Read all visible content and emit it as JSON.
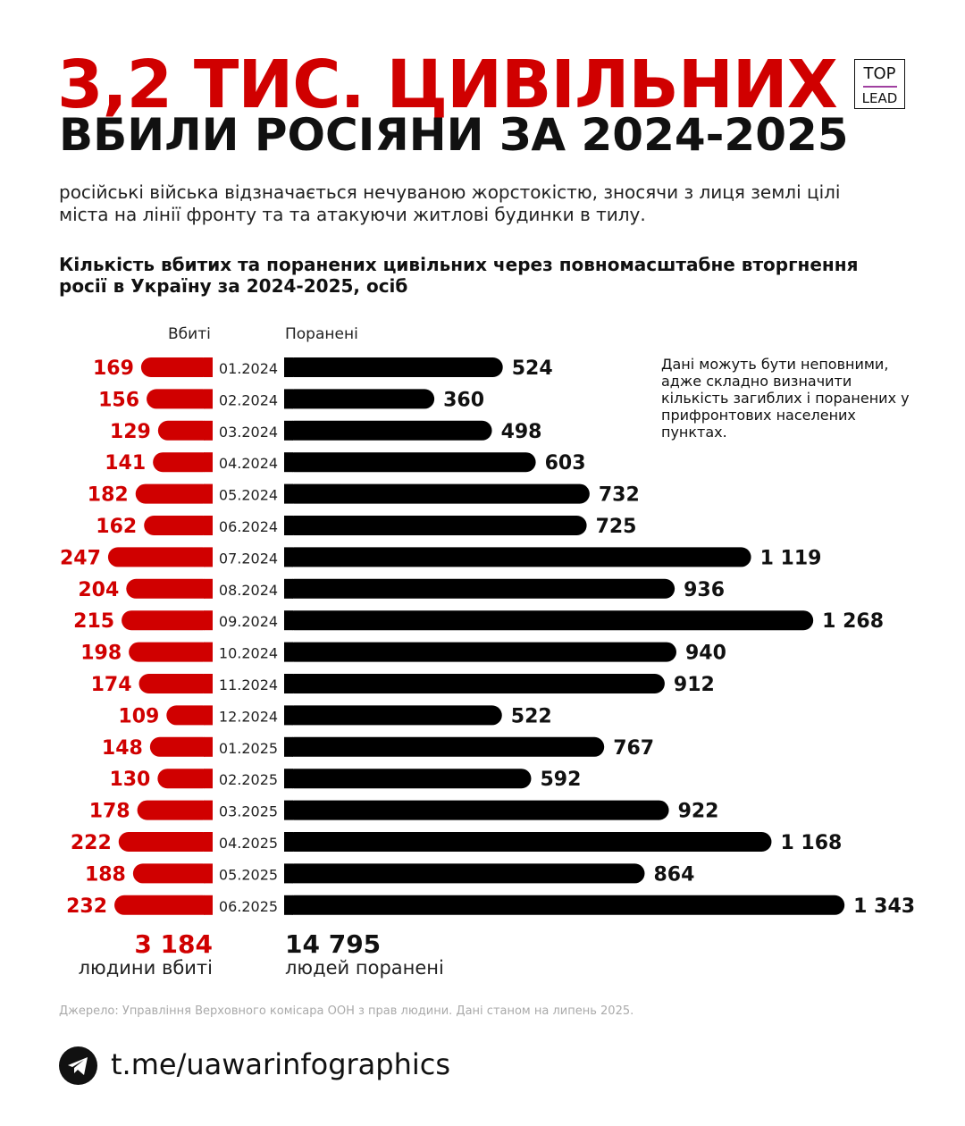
{
  "title_line1": "3,2 ТИС. ЦИВІЛЬНИХ",
  "title_line2": "ВБИЛИ РОСІЯНИ ЗА 2024-2025",
  "logo": {
    "top": "TOP",
    "bottom": "LEAD"
  },
  "subtitle": "російські війська відзначається нечуваною жорстокістю, зносячи з лиця землі цілі міста на лінії фронту та та атакуючи житлові будинки в тилу.",
  "note": "Дані можуть бути неповними, адже складно визначити кількість загиблих і поранених у прифронтових населених пунктах.",
  "totals": {
    "killed": "3 184",
    "killed_label": "людини вбиті",
    "wounded": "14 795",
    "wounded_label": "людей поранені"
  },
  "source": "Джерело: Управління Верховного комісара ООН з прав людини. Дані станом на липень 2025.",
  "telegram": {
    "icon": "telegram-icon",
    "link": "t.me/uawarinfographics"
  },
  "colors": {
    "killed": "#d00000",
    "wounded": "#000000"
  },
  "chart_data": {
    "type": "bar",
    "orientation": "horizontal-butterfly",
    "title": "Кількість вбитих та поранених цивільних через повномасштабне вторгнення росії в Україну за 2024-2025, осіб",
    "categories": [
      "01.2024",
      "02.2024",
      "03.2024",
      "04.2024",
      "05.2024",
      "06.2024",
      "07.2024",
      "08.2024",
      "09.2024",
      "10.2024",
      "11.2024",
      "12.2024",
      "01.2025",
      "02.2025",
      "03.2025",
      "04.2025",
      "05.2025",
      "06.2025"
    ],
    "series": [
      {
        "name": "Вбиті",
        "values": [
          169,
          156,
          129,
          141,
          182,
          162,
          247,
          204,
          215,
          198,
          174,
          109,
          148,
          130,
          178,
          222,
          188,
          232
        ],
        "labels": [
          "169",
          "156",
          "129",
          "141",
          "182",
          "162",
          "247",
          "204",
          "215",
          "198",
          "174",
          "109",
          "148",
          "130",
          "178",
          "222",
          "188",
          "232"
        ]
      },
      {
        "name": "Поранені",
        "values": [
          524,
          360,
          498,
          603,
          732,
          725,
          1119,
          936,
          1268,
          940,
          912,
          522,
          767,
          592,
          922,
          1168,
          864,
          1343
        ],
        "labels": [
          "524",
          "360",
          "498",
          "603",
          "732",
          "725",
          "1 119",
          "936",
          "1 268",
          "940",
          "912",
          "522",
          "767",
          "592",
          "922",
          "1 168",
          "864",
          "1 343"
        ]
      }
    ],
    "grid": false
  }
}
